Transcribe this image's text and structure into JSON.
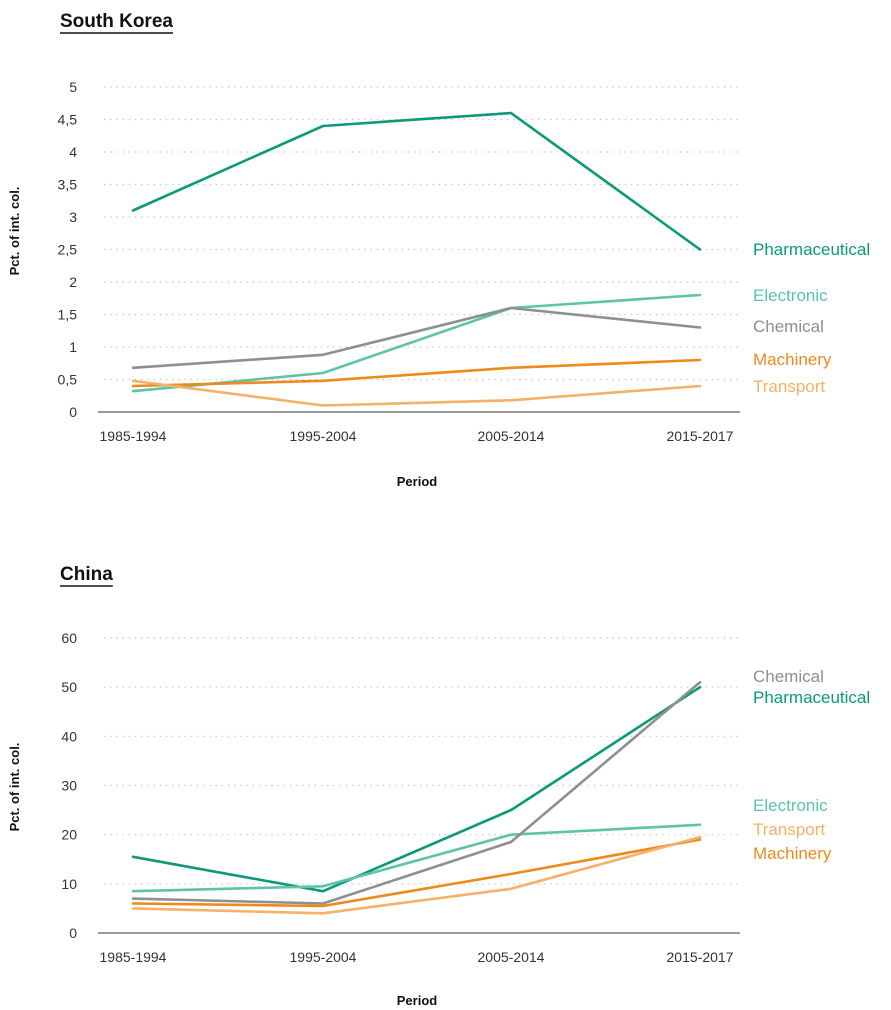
{
  "colors": {
    "Pharmaceutical": "#0a9a78",
    "Electronic": "#5dc4a8",
    "Chemical": "#8f8f93",
    "Machinery": "#ee8a1c",
    "Transport": "#f6b168"
  },
  "chart_data": [
    {
      "type": "line",
      "title": "South Korea",
      "xlabel": "Period",
      "ylabel": "Pct. of int. col.",
      "categories": [
        "1985-1994",
        "1995-2004",
        "2005-2014",
        "2015-2017"
      ],
      "ylim": [
        0,
        5
      ],
      "yticks": [
        "0",
        "0,5",
        "1",
        "1,5",
        "2",
        "2,5",
        "3",
        "3,5",
        "4",
        "4,5",
        "5"
      ],
      "grid": true,
      "series": [
        {
          "name": "Pharmaceutical",
          "values": [
            3.1,
            4.4,
            4.6,
            2.5
          ]
        },
        {
          "name": "Electronic",
          "values": [
            0.32,
            0.6,
            1.6,
            1.8
          ]
        },
        {
          "name": "Chemical",
          "values": [
            0.68,
            0.88,
            1.6,
            1.3
          ]
        },
        {
          "name": "Machinery",
          "values": [
            0.4,
            0.48,
            0.68,
            0.8
          ]
        },
        {
          "name": "Transport",
          "values": [
            0.48,
            0.1,
            0.18,
            0.4
          ]
        }
      ]
    },
    {
      "type": "line",
      "title": "China",
      "xlabel": "Period",
      "ylabel": "Pct. of int. col.",
      "categories": [
        "1985-1994",
        "1995-2004",
        "2005-2014",
        "2015-2017"
      ],
      "ylim": [
        0,
        60
      ],
      "yticks": [
        "0",
        "10",
        "20",
        "30",
        "40",
        "50",
        "60"
      ],
      "grid": true,
      "series": [
        {
          "name": "Pharmaceutical",
          "values": [
            15.5,
            8.5,
            25,
            50
          ]
        },
        {
          "name": "Electronic",
          "values": [
            8.5,
            9.5,
            20,
            22
          ]
        },
        {
          "name": "Chemical",
          "values": [
            7,
            6,
            18.5,
            51
          ]
        },
        {
          "name": "Machinery",
          "values": [
            6,
            5.5,
            12,
            19
          ]
        },
        {
          "name": "Transport",
          "values": [
            5,
            4,
            9,
            19.5
          ]
        }
      ]
    }
  ]
}
